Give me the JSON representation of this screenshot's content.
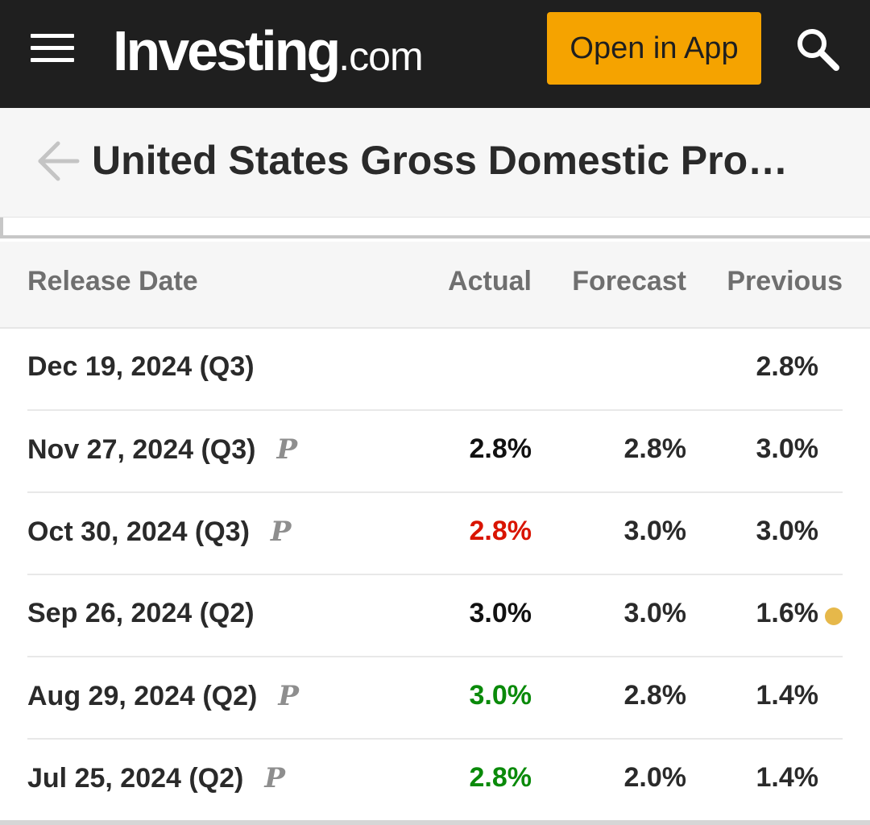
{
  "topbar": {
    "logo_brand": "Investing",
    "logo_tld": ".com",
    "open_app_label": "Open in App",
    "icons": {
      "menu": "hamburger-menu-icon",
      "search": "search-icon"
    }
  },
  "header": {
    "title": "United States Gross Domestic Pro…",
    "back_icon": "back-arrow-icon"
  },
  "table": {
    "columns": {
      "release_date": "Release Date",
      "actual": "Actual",
      "forecast": "Forecast",
      "previous": "Previous"
    },
    "rows": [
      {
        "date": "Dec 19, 2024 (Q3)",
        "preliminary": "",
        "actual": "",
        "forecast": "",
        "previous": "2.8%",
        "actual_status": "neutral",
        "revised_dot": false
      },
      {
        "date": "Nov 27, 2024 (Q3)",
        "preliminary": "P",
        "actual": "2.8%",
        "forecast": "2.8%",
        "previous": "3.0%",
        "actual_status": "neutral",
        "revised_dot": false
      },
      {
        "date": "Oct 30, 2024 (Q3)",
        "preliminary": "P",
        "actual": "2.8%",
        "forecast": "3.0%",
        "previous": "3.0%",
        "actual_status": "negative",
        "revised_dot": false
      },
      {
        "date": "Sep 26, 2024 (Q2)",
        "preliminary": "",
        "actual": "3.0%",
        "forecast": "3.0%",
        "previous": "1.6%",
        "actual_status": "neutral",
        "revised_dot": true
      },
      {
        "date": "Aug 29, 2024 (Q2)",
        "preliminary": "P",
        "actual": "3.0%",
        "forecast": "2.8%",
        "previous": "1.4%",
        "actual_status": "positive",
        "revised_dot": false
      },
      {
        "date": "Jul 25, 2024 (Q2)",
        "preliminary": "P",
        "actual": "2.8%",
        "forecast": "2.0%",
        "previous": "1.4%",
        "actual_status": "positive",
        "revised_dot": false
      }
    ]
  },
  "colors": {
    "topbar_bg": "#1f1f1f",
    "accent": "#f5a300",
    "negative": "#d91400",
    "positive": "#0a8a0a",
    "neutral": "#111111",
    "revised_dot": "#e6b84a"
  }
}
